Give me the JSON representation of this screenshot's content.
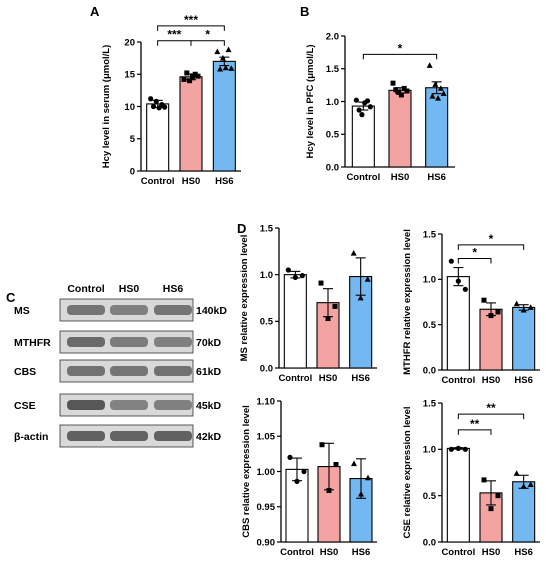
{
  "panel_letters": {
    "a": "A",
    "b": "B",
    "c": "C",
    "d": "D"
  },
  "colors": {
    "control": "#ffffff",
    "hs0": "#f4a3a3",
    "hs6": "#74b8f2",
    "outline": "#000000"
  },
  "chart_data": [
    {
      "id": "A",
      "type": "bar",
      "categories": [
        "Control",
        "HS0",
        "HS6"
      ],
      "values": [
        10.4,
        14.6,
        17.0
      ],
      "errors": [
        0.55,
        0.45,
        0.65
      ],
      "points": [
        [
          11.2,
          10.0,
          10.8,
          9.8,
          10.3,
          9.9
        ],
        [
          14.2,
          15.2,
          14.0,
          14.6,
          15.0,
          14.7
        ],
        [
          18.5,
          15.8,
          17.5,
          16.0,
          18.8,
          15.9
        ]
      ],
      "markers": [
        "circle",
        "square",
        "triangle"
      ],
      "xlabel": "",
      "ylabel": "Hcy level in serum (μmol/L)",
      "ylim": [
        0,
        20
      ],
      "yticks": [
        "0",
        "5",
        "10",
        "15",
        "20"
      ],
      "grid": false,
      "significance": [
        {
          "from": 0,
          "to": 1,
          "label": "***",
          "value": 20.2
        },
        {
          "from": 1,
          "to": 2,
          "label": "*",
          "value": 20.2
        },
        {
          "from": 0,
          "to": 2,
          "label": "***",
          "value": 22.5
        }
      ]
    },
    {
      "id": "B",
      "type": "bar",
      "categories": [
        "Control",
        "HS0",
        "HS6"
      ],
      "values": [
        0.93,
        1.17,
        1.21
      ],
      "errors": [
        0.06,
        0.04,
        0.09
      ],
      "points": [
        [
          1.02,
          0.87,
          0.8,
          0.98,
          1.01,
          0.92
        ],
        [
          1.28,
          1.18,
          1.14,
          1.1,
          1.2,
          1.16
        ],
        [
          1.55,
          1.08,
          1.26,
          1.05,
          1.2,
          1.12
        ]
      ],
      "markers": [
        "circle",
        "square",
        "triangle"
      ],
      "xlabel": "",
      "ylabel": "Hcy level in PFC (μmol/L)",
      "ylim": [
        0.0,
        2.0
      ],
      "yticks": [
        "0.0",
        "0.5",
        "1.0",
        "1.5",
        "2.0"
      ],
      "grid": false,
      "significance": [
        {
          "from": 0,
          "to": 2,
          "label": "*",
          "value": 1.72
        }
      ]
    },
    {
      "id": "D-MS",
      "type": "bar",
      "categories": [
        "Control",
        "HS0",
        "HS6"
      ],
      "values": [
        1.0,
        0.7,
        0.98
      ],
      "errors": [
        0.035,
        0.15,
        0.2
      ],
      "points": [
        [
          1.05,
          0.97,
          0.99
        ],
        [
          0.91,
          0.53,
          0.66
        ],
        [
          1.23,
          0.75,
          0.95
        ]
      ],
      "markers": [
        "circle",
        "square",
        "triangle"
      ],
      "xlabel": "",
      "ylabel": "MS relative expression level",
      "ylim": [
        0.0,
        1.5
      ],
      "yticks": [
        "0.0",
        "0.5",
        "1.0",
        "1.5"
      ],
      "grid": false,
      "significance": []
    },
    {
      "id": "D-MTHFR",
      "type": "bar",
      "categories": [
        "Control",
        "HS0",
        "HS6"
      ],
      "values": [
        1.03,
        0.67,
        0.69
      ],
      "errors": [
        0.1,
        0.07,
        0.03
      ],
      "points": [
        [
          1.2,
          0.98,
          0.89
        ],
        [
          0.77,
          0.6,
          0.64
        ],
        [
          0.73,
          0.66,
          0.69
        ]
      ],
      "markers": [
        "circle",
        "square",
        "triangle"
      ],
      "xlabel": "",
      "ylabel": "MTHFR relative expression level",
      "ylim": [
        0.0,
        1.5
      ],
      "yticks": [
        "0.0",
        "0.5",
        "1.0",
        "1.5"
      ],
      "grid": false,
      "significance": [
        {
          "from": 0,
          "to": 1,
          "label": "*",
          "value": 1.23
        },
        {
          "from": 0,
          "to": 2,
          "label": "*",
          "value": 1.38
        }
      ]
    },
    {
      "id": "D-CBS",
      "type": "bar",
      "categories": [
        "Control",
        "HS0",
        "HS6"
      ],
      "values": [
        1.003,
        1.007,
        0.99
      ],
      "errors": [
        0.016,
        0.033,
        0.028
      ],
      "points": [
        [
          1.02,
          0.986,
          1.0
        ],
        [
          1.038,
          0.973,
          1.01
        ],
        [
          1.011,
          0.968,
          0.991
        ]
      ],
      "markers": [
        "circle",
        "square",
        "triangle"
      ],
      "xlabel": "",
      "ylabel": "CBS relative expression level",
      "ylim": [
        0.9,
        1.1
      ],
      "yticks": [
        "0.90",
        "0.95",
        "1.00",
        "1.05",
        "1.10"
      ],
      "grid": false,
      "significance": []
    },
    {
      "id": "D-CSE",
      "type": "bar",
      "categories": [
        "Control",
        "HS0",
        "HS6"
      ],
      "values": [
        1.01,
        0.53,
        0.65
      ],
      "errors": [
        0.008,
        0.13,
        0.07
      ],
      "points": [
        [
          1.0,
          1.01,
          1.0
        ],
        [
          0.67,
          0.36,
          0.5
        ],
        [
          0.74,
          0.6,
          0.62
        ]
      ],
      "markers": [
        "circle",
        "square",
        "triangle"
      ],
      "xlabel": "",
      "ylabel": "CSE relative expression level",
      "ylim": [
        0.0,
        1.5
      ],
      "yticks": [
        "0.0",
        "0.5",
        "1.0",
        "1.5"
      ],
      "grid": false,
      "significance": [
        {
          "from": 0,
          "to": 1,
          "label": "**",
          "value": 1.21
        },
        {
          "from": 0,
          "to": 2,
          "label": "**",
          "value": 1.38
        }
      ]
    }
  ],
  "western_blot": {
    "columns": [
      "Control",
      "HS0",
      "HS6"
    ],
    "rows": [
      {
        "protein": "MS",
        "size": "140kD",
        "intensity": [
          0.7,
          0.62,
          0.7
        ]
      },
      {
        "protein": "MTHFR",
        "size": "70kD",
        "intensity": [
          0.78,
          0.65,
          0.62
        ]
      },
      {
        "protein": "CBS",
        "size": "61kD",
        "intensity": [
          0.72,
          0.7,
          0.72
        ]
      },
      {
        "protein": "CSE",
        "size": "45kD",
        "intensity": [
          0.92,
          0.6,
          0.62
        ]
      },
      {
        "protein": "β-actin",
        "size": "42kD",
        "intensity": [
          0.85,
          0.83,
          0.85
        ]
      }
    ]
  }
}
